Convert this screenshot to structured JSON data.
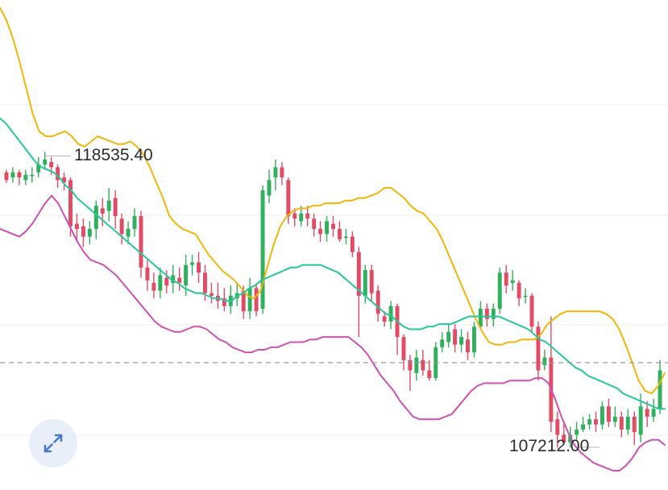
{
  "chart_data": {
    "type": "candlestick",
    "title": "",
    "xlabel": "",
    "ylabel": "",
    "ylim": [
      105800,
      124600
    ],
    "grid": true,
    "current_price_line": 110500,
    "annotations": [
      {
        "label": "118535.40",
        "value": 118535.4,
        "candle_index": 6
      },
      {
        "label": "107212.00",
        "value": 107212.0,
        "candle_index": 89
      }
    ],
    "candles": [
      [
        117900,
        117600,
        118000,
        117500
      ],
      [
        117700,
        117900,
        118100,
        117500
      ],
      [
        117900,
        117700,
        118000,
        117400
      ],
      [
        117600,
        117800,
        118000,
        117400
      ],
      [
        117800,
        117800,
        118100,
        117500
      ],
      [
        117900,
        118200,
        118500,
        117700
      ],
      [
        118200,
        118400,
        118700,
        118000
      ],
      [
        118300,
        118100,
        118500,
        117800
      ],
      [
        118100,
        117600,
        118200,
        117300
      ],
      [
        117700,
        117500,
        117900,
        117200
      ],
      [
        117600,
        115800,
        117700,
        115400
      ],
      [
        115900,
        115700,
        116300,
        115200
      ],
      [
        115800,
        115400,
        116100,
        115000
      ],
      [
        115400,
        115700,
        116000,
        115100
      ],
      [
        115700,
        116600,
        116800,
        115300
      ],
      [
        116500,
        116300,
        116900,
        115800
      ],
      [
        116400,
        116800,
        117300,
        116000
      ],
      [
        116900,
        116200,
        117200,
        115700
      ],
      [
        116100,
        115500,
        116300,
        115100
      ],
      [
        115400,
        115700,
        116000,
        115100
      ],
      [
        115700,
        116200,
        116500,
        115400
      ],
      [
        116200,
        114200,
        116400,
        113800
      ],
      [
        114200,
        113700,
        114500,
        113300
      ],
      [
        113600,
        113300,
        114000,
        113000
      ],
      [
        113300,
        113900,
        114200,
        113000
      ],
      [
        113800,
        113500,
        114100,
        113200
      ],
      [
        113600,
        113900,
        114300,
        113200
      ],
      [
        113800,
        113600,
        114200,
        113300
      ],
      [
        113500,
        114300,
        114700,
        113100
      ],
      [
        114300,
        114400,
        114700,
        113900
      ],
      [
        114400,
        114000,
        114800,
        113600
      ],
      [
        114000,
        113200,
        114300,
        112900
      ],
      [
        113200,
        113100,
        113600,
        112800
      ],
      [
        113100,
        112900,
        113600,
        112600
      ],
      [
        113000,
        112700,
        113400,
        112500
      ],
      [
        112700,
        113100,
        113500,
        112400
      ],
      [
        113000,
        113200,
        113600,
        112700
      ],
      [
        113300,
        112500,
        113500,
        112200
      ],
      [
        112500,
        113400,
        113800,
        112200
      ],
      [
        113400,
        112500,
        113600,
        112300
      ],
      [
        112600,
        117200,
        117400,
        112400
      ],
      [
        117000,
        117600,
        118000,
        116700
      ],
      [
        117700,
        118100,
        118400,
        117200
      ],
      [
        118100,
        117700,
        118300,
        117400
      ],
      [
        117600,
        116200,
        117700,
        115900
      ],
      [
        116300,
        116100,
        116500,
        115800
      ],
      [
        116000,
        116300,
        116600,
        115800
      ],
      [
        116300,
        116100,
        116600,
        115800
      ],
      [
        116100,
        115700,
        116300,
        115400
      ],
      [
        115700,
        115500,
        116000,
        115200
      ],
      [
        115500,
        116000,
        116200,
        115200
      ],
      [
        115900,
        115700,
        116200,
        115400
      ],
      [
        115700,
        115300,
        116000,
        115200
      ],
      [
        115400,
        115400,
        115700,
        115100
      ],
      [
        115400,
        114800,
        115600,
        114600
      ],
      [
        114800,
        113100,
        115000,
        111500
      ],
      [
        113100,
        114100,
        114300,
        112800
      ],
      [
        114100,
        113200,
        114300,
        112900
      ],
      [
        113300,
        112400,
        113500,
        112100
      ],
      [
        112300,
        112100,
        112500,
        111900
      ],
      [
        112100,
        112700,
        112900,
        111800
      ],
      [
        112700,
        111500,
        112800,
        110800
      ],
      [
        111500,
        110600,
        111600,
        110200
      ],
      [
        110600,
        110200,
        110800,
        109400
      ],
      [
        110100,
        110700,
        111000,
        109800
      ],
      [
        110600,
        110200,
        111000,
        110000
      ],
      [
        110200,
        109900,
        110600,
        109800
      ],
      [
        109900,
        111100,
        111300,
        109800
      ],
      [
        111100,
        111400,
        111700,
        110900
      ],
      [
        111300,
        111700,
        112000,
        111100
      ],
      [
        111800,
        111200,
        112000,
        110900
      ],
      [
        111200,
        111500,
        111800,
        110900
      ],
      [
        111400,
        110900,
        111700,
        110600
      ],
      [
        110900,
        111900,
        112100,
        110700
      ],
      [
        111900,
        112600,
        112900,
        111800
      ],
      [
        112600,
        112200,
        112800,
        111900
      ],
      [
        112200,
        112600,
        112800,
        111900
      ],
      [
        112600,
        114000,
        114200,
        112400
      ],
      [
        114000,
        113500,
        114300,
        113200
      ],
      [
        113600,
        113700,
        114100,
        113300
      ],
      [
        113600,
        113000,
        113700,
        112700
      ],
      [
        113100,
        113100,
        113400,
        112800
      ],
      [
        113100,
        111900,
        113200,
        111700
      ],
      [
        111900,
        110200,
        112100,
        109800
      ],
      [
        110400,
        110700,
        111000,
        110200
      ],
      [
        110700,
        108200,
        112300,
        107800
      ],
      [
        108300,
        107700,
        108600,
        107200
      ],
      [
        107700,
        107400,
        108100,
        107300
      ],
      [
        107400,
        107700,
        108000,
        107200
      ],
      [
        107700,
        107900,
        108200,
        107500
      ],
      [
        107900,
        108100,
        108400,
        107800
      ],
      [
        108100,
        108300,
        108500,
        107900
      ],
      [
        108300,
        108100,
        108600,
        107800
      ],
      [
        108100,
        108800,
        109000,
        107900
      ],
      [
        108800,
        108200,
        109100,
        108000
      ],
      [
        108200,
        108400,
        108800,
        108000
      ],
      [
        108400,
        107900,
        108600,
        107600
      ],
      [
        107900,
        108400,
        108700,
        107700
      ],
      [
        108400,
        107800,
        108600,
        107300
      ],
      [
        107700,
        108800,
        109300,
        107400
      ],
      [
        108700,
        108400,
        109000,
        108000
      ],
      [
        108400,
        108700,
        109100,
        108200
      ],
      [
        108700,
        110200,
        110600,
        108500
      ]
    ],
    "series": [
      {
        "name": "",
        "color": "#f2b60a",
        "values": [
          124300,
          123800,
          123100,
          122200,
          121200,
          120200,
          119500,
          119300,
          119300,
          119400,
          119500,
          119300,
          119000,
          118900,
          119100,
          119300,
          119200,
          119100,
          119000,
          119000,
          119100,
          118900,
          118600,
          118100,
          117500,
          116900,
          116200,
          115900,
          115700,
          115600,
          115500,
          115100,
          114700,
          114400,
          114100,
          113900,
          113700,
          113400,
          113100,
          113000,
          113300,
          114200,
          115100,
          115800,
          116200,
          116400,
          116500,
          116500,
          116600,
          116600,
          116700,
          116700,
          116700,
          116800,
          116800,
          116900,
          116900,
          117000,
          117100,
          117300,
          117300,
          117100,
          116900,
          116600,
          116400,
          116300,
          116000,
          115700,
          115200,
          114600,
          114000,
          113400,
          112800,
          112200,
          111700,
          111300,
          111200,
          111200,
          111300,
          111300,
          111400,
          111400,
          111400,
          111600,
          112000,
          112200,
          112400,
          112500,
          112500,
          112500,
          112500,
          112500,
          112500,
          112400,
          112200,
          111800,
          111200,
          110500,
          109800,
          109400,
          109300,
          109600,
          110100
        ]
      },
      {
        "name": "",
        "color": "#26c79c",
        "values": [
          120000,
          119800,
          119500,
          119200,
          118900,
          118600,
          118300,
          118100,
          118000,
          117900,
          117700,
          117400,
          117200,
          116900,
          116700,
          116500,
          116300,
          116100,
          115900,
          115700,
          115500,
          115300,
          115100,
          114900,
          114700,
          114500,
          114300,
          114100,
          113900,
          113700,
          113600,
          113400,
          113300,
          113200,
          113200,
          113100,
          113000,
          113000,
          112900,
          112900,
          113100,
          113200,
          113400,
          113500,
          113700,
          113800,
          113900,
          114000,
          114100,
          114200,
          114200,
          114300,
          114300,
          114300,
          114300,
          114200,
          114100,
          114000,
          113800,
          113600,
          113400,
          113200,
          113000,
          112800,
          112600,
          112400,
          112300,
          112100,
          111900,
          111800,
          111800,
          111800,
          111900,
          111900,
          112000,
          112000,
          112000,
          112100,
          112200,
          112300,
          112300,
          112300,
          112300,
          112300,
          112300,
          112200,
          112100,
          112000,
          111900,
          111800,
          111600,
          111400,
          111300,
          111100,
          110900,
          110700,
          110500,
          110300,
          110200,
          110000,
          109900,
          109800,
          109700,
          109600,
          109500,
          109300,
          109200,
          109100,
          109000,
          108900,
          108800,
          108700,
          108700
        ]
      },
      {
        "name": "",
        "color": "#cf50b4",
        "values": [
          115700,
          115600,
          115500,
          115400,
          115600,
          115900,
          116300,
          116700,
          117000,
          116700,
          116200,
          115700,
          115200,
          114800,
          114500,
          114400,
          114300,
          114100,
          113900,
          113600,
          113300,
          113000,
          112700,
          112400,
          112100,
          111900,
          111800,
          111700,
          111700,
          111800,
          111900,
          111900,
          111800,
          111600,
          111400,
          111300,
          111100,
          111000,
          110900,
          110900,
          111000,
          111000,
          111100,
          111100,
          111200,
          111300,
          111300,
          111300,
          111400,
          111400,
          111500,
          111500,
          111500,
          111500,
          111500,
          111300,
          111100,
          110800,
          110400,
          110000,
          109700,
          109400,
          109000,
          108700,
          108400,
          108300,
          108300,
          108300,
          108300,
          108400,
          108500,
          108800,
          109100,
          109400,
          109600,
          109700,
          109700,
          109700,
          109700,
          109800,
          109800,
          109800,
          109800,
          109900,
          109900,
          109700,
          109100,
          108400,
          107800,
          107300,
          107000,
          106800,
          106600,
          106500,
          106400,
          106300,
          106300,
          106500,
          106800,
          107200,
          107400,
          107500,
          107500,
          107300
        ]
      }
    ]
  },
  "expand_button": {
    "icon": "expand-icon",
    "background": "#e9effa",
    "icon_color": "#4a78c8"
  },
  "colors": {
    "up": "#30b05c",
    "down": "#e24b64",
    "grid": "#ececec",
    "dash": "#9a9a9a",
    "annotation_line": "#b8b8b8"
  }
}
